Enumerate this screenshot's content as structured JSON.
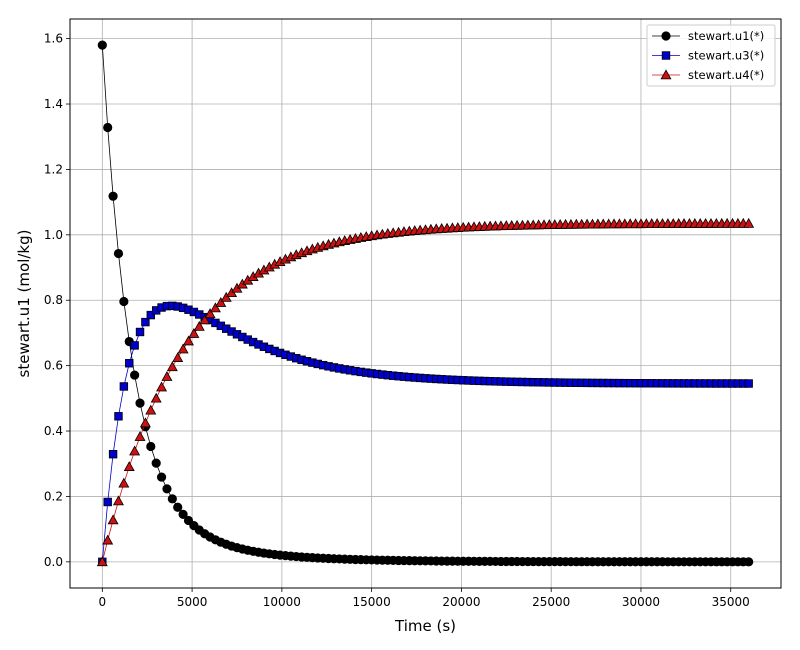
{
  "chart_data": {
    "type": "line",
    "title": "",
    "xlabel": "Time (s)",
    "ylabel": "stewart.u1 (mol/kg)",
    "xlim": [
      -1800,
      37800
    ],
    "ylim": [
      -0.08,
      1.66
    ],
    "xticks": [
      0,
      5000,
      10000,
      15000,
      20000,
      25000,
      30000,
      35000
    ],
    "yticks": [
      0.0,
      0.2,
      0.4,
      0.6,
      0.8,
      1.0,
      1.2,
      1.4,
      1.6
    ],
    "xtick_labels": [
      "0",
      "5000",
      "10000",
      "15000",
      "20000",
      "25000",
      "30000",
      "35000"
    ],
    "ytick_labels": [
      "0.0",
      "0.2",
      "0.4",
      "0.6",
      "0.8",
      "1.0",
      "1.2",
      "1.4",
      "1.6"
    ],
    "grid": true,
    "legend_position": "top-right",
    "x_sampling": {
      "start": 0,
      "step": 300,
      "count": 121
    },
    "series": [
      {
        "name": "stewart.u1(*)",
        "color": "#000000",
        "marker": "circle",
        "model": {
          "kind": "sum_exp",
          "c": 0.0,
          "terms": [
            [
              1.425,
              0.00062
            ],
            [
              0.155,
              0.00022
            ]
          ]
        }
      },
      {
        "name": "stewart.u3(*)",
        "color": "#0000cc",
        "marker": "square",
        "model": {
          "kind": "sum_exp",
          "c": 0.545,
          "terms": [
            [
              -1.4,
              0.00062
            ],
            [
              0.855,
              0.00022
            ]
          ]
        }
      },
      {
        "name": "stewart.u4(*)",
        "color": "#cc1111",
        "marker": "triangle",
        "model": {
          "kind": "sum_exp",
          "c": 1.035,
          "terms": [
            [
              0.0,
              0.00062
            ],
            [
              -1.035,
              0.00022
            ]
          ]
        }
      }
    ]
  }
}
